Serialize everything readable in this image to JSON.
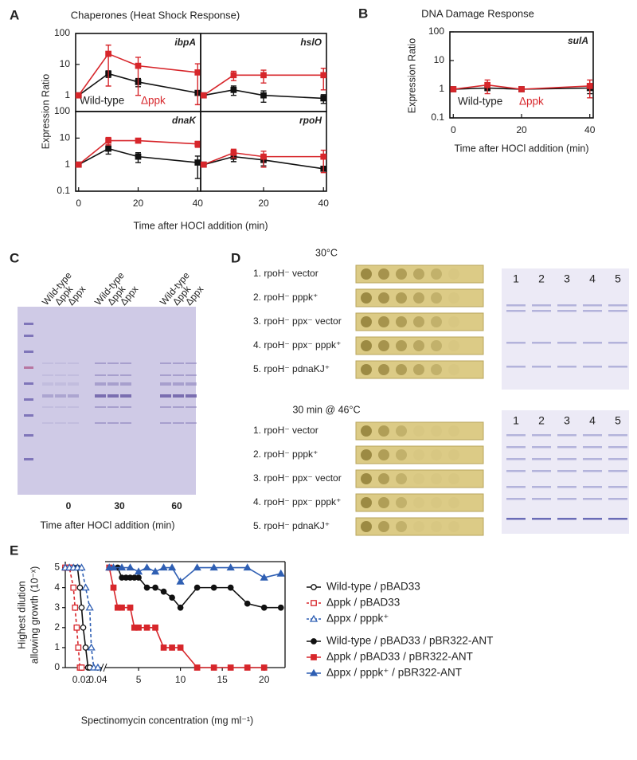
{
  "panel_labels": [
    "A",
    "B",
    "C",
    "D",
    "E"
  ],
  "panel_a": {
    "title": "Chaperones (Heat Shock Response)",
    "y_label": "Expression Ratio",
    "x_label": "Time after HOCl addition (min)"
  },
  "chart_data": [
    {
      "type": "line",
      "label": "ibpA",
      "log_scale": true,
      "x": [
        0,
        10,
        20,
        40
      ],
      "xlim": [
        -1,
        41
      ],
      "ylim": [
        0.3,
        100
      ],
      "yticks": [
        1,
        10,
        100
      ],
      "series": [
        {
          "name": "Wild-type",
          "color": "#111111",
          "marker": "square",
          "filled": true,
          "values": [
            1,
            5,
            2.7,
            1.2
          ],
          "errors": [
            0,
            1.2,
            0.8,
            0.1
          ]
        },
        {
          "name": "Δppk",
          "color": "#d7262b",
          "marker": "square",
          "filled": true,
          "values": [
            1,
            22,
            9,
            5.5
          ],
          "errors": [
            0,
            20,
            8,
            5
          ]
        }
      ]
    },
    {
      "type": "line",
      "label": "hslO",
      "log_scale": true,
      "x": [
        0,
        10,
        20,
        40
      ],
      "xlim": [
        -1,
        41
      ],
      "ylim": [
        0.3,
        100
      ],
      "series": [
        {
          "color": "#111111",
          "marker": "square",
          "filled": true,
          "values": [
            1,
            1.5,
            1,
            0.8
          ],
          "errors": [
            0,
            0.5,
            0.4,
            0.25
          ]
        },
        {
          "color": "#d7262b",
          "marker": "square",
          "filled": true,
          "values": [
            1,
            4.5,
            4.5,
            4.5
          ],
          "errors": [
            0,
            1.5,
            2,
            3
          ]
        }
      ]
    },
    {
      "type": "line",
      "label": "dnaK",
      "log_scale": true,
      "x": [
        0,
        10,
        20,
        40
      ],
      "xlim": [
        -1,
        41
      ],
      "ylim": [
        0.1,
        100
      ],
      "yticks": [
        0.1,
        1,
        10,
        100
      ],
      "xticks": [
        0,
        20,
        40
      ],
      "series": [
        {
          "color": "#111111",
          "marker": "square",
          "filled": true,
          "values": [
            1,
            4,
            2,
            1.2
          ],
          "errors": [
            0,
            1.5,
            0.8,
            0.9
          ]
        },
        {
          "color": "#d7262b",
          "marker": "square",
          "filled": true,
          "values": [
            1,
            8,
            8,
            6
          ],
          "errors": [
            0,
            2.5,
            0.5,
            1.5
          ]
        }
      ]
    },
    {
      "type": "line",
      "label": "rpoH",
      "log_scale": true,
      "x": [
        0,
        10,
        20,
        40
      ],
      "xlim": [
        -1,
        41
      ],
      "ylim": [
        0.1,
        100
      ],
      "xticks": [
        20,
        40
      ],
      "series": [
        {
          "color": "#111111",
          "marker": "square",
          "filled": true,
          "values": [
            1,
            2,
            1.5,
            0.7
          ],
          "errors": [
            0,
            0.7,
            0.6,
            0.05
          ]
        },
        {
          "color": "#d7262b",
          "marker": "square",
          "filled": true,
          "values": [
            1,
            2.8,
            2,
            2
          ],
          "errors": [
            0,
            1,
            1.2,
            1.5
          ]
        }
      ]
    },
    {
      "type": "line",
      "title": "DNA Damage Response",
      "label": "sulA",
      "y_label": "Expression Ratio",
      "x_label": "Time after HOCl addition (min)",
      "log_scale": true,
      "x": [
        0,
        10,
        20,
        40
      ],
      "xlim": [
        -1,
        41
      ],
      "ylim": [
        0.1,
        100
      ],
      "yticks": [
        0.1,
        1,
        10,
        100
      ],
      "xticks": [
        0,
        20,
        40
      ],
      "series": [
        {
          "name": "Wild-type",
          "color": "#111111",
          "marker": "square",
          "filled": true,
          "values": [
            1,
            1.1,
            1,
            1.1
          ],
          "errors": [
            0,
            0.2,
            0.05,
            0.4
          ]
        },
        {
          "name": "Δppk",
          "color": "#d7262b",
          "marker": "square",
          "filled": true,
          "values": [
            1,
            1.4,
            1,
            1.3
          ],
          "errors": [
            0,
            0.7,
            0.1,
            0.8
          ]
        }
      ]
    },
    {
      "type": "line",
      "xlim": [
        0,
        0.045
      ],
      "ylim": [
        0,
        5.3
      ],
      "yticks": [
        0,
        1,
        2,
        3,
        4,
        5
      ],
      "xticks": [
        0.02,
        0.04
      ],
      "series": [
        {
          "name": "Wild-type / pBAD33",
          "color": "#111111",
          "marker": "circle",
          "filled": false,
          "line_style": "solid",
          "x": [
            0,
            0.005,
            0.01,
            0.015,
            0.018,
            0.02,
            0.022,
            0.025,
            0.028,
            0.03
          ],
          "values": [
            5,
            5,
            5,
            5,
            4,
            3,
            2,
            1,
            0,
            0
          ]
        },
        {
          "name": "Δppk / pBAD33",
          "color": "#d7262b",
          "marker": "square",
          "filled": false,
          "line_style": "dashed",
          "x": [
            0,
            0.005,
            0.01,
            0.012,
            0.014,
            0.016,
            0.018,
            0.02
          ],
          "values": [
            5,
            5,
            4,
            3,
            2,
            1,
            0,
            0
          ]
        },
        {
          "name": "Δppx / pppk⁺",
          "color": "#2f5fb3",
          "marker": "triangle",
          "filled": false,
          "line_style": "dashed",
          "x": [
            0,
            0.005,
            0.01,
            0.015,
            0.02,
            0.025,
            0.03,
            0.032,
            0.035,
            0.04
          ],
          "values": [
            5,
            5,
            5,
            5,
            5,
            4,
            3,
            1,
            0,
            0
          ]
        }
      ]
    },
    {
      "type": "line",
      "xlim": [
        1,
        22.5
      ],
      "ylim": [
        0,
        5.3
      ],
      "xticks": [
        5,
        10,
        15,
        20
      ],
      "series": [
        {
          "name": "Wild-type / pBAD33 / pBR322-ANT",
          "color": "#111111",
          "marker": "circle",
          "filled": true,
          "line_style": "solid",
          "x": [
            1.5,
            2.5,
            3,
            3.5,
            4,
            4.5,
            5,
            6,
            7,
            8,
            9,
            10,
            12,
            14,
            16,
            18,
            20,
            22
          ],
          "values": [
            5,
            5,
            4.5,
            4.5,
            4.5,
            4.5,
            4.5,
            4,
            4,
            3.8,
            3.5,
            3,
            4,
            4,
            4,
            3.2,
            3,
            3
          ]
        },
        {
          "name": "Δppk / pBAD33 / pBR322-ANT",
          "color": "#d7262b",
          "marker": "square",
          "filled": true,
          "line_style": "solid",
          "x": [
            1.5,
            2,
            2.5,
            3,
            4,
            4.5,
            5,
            6,
            7,
            8,
            9,
            10,
            12,
            14,
            16,
            18,
            20
          ],
          "values": [
            5,
            4,
            3,
            3,
            3,
            2,
            2,
            2,
            2,
            1,
            1,
            1,
            0,
            0,
            0,
            0,
            0
          ]
        },
        {
          "name": "Δppx / pppk⁺ / pBR322-ANT",
          "color": "#2f5fb3",
          "marker": "triangle",
          "filled": true,
          "line_style": "solid",
          "x": [
            1.5,
            2,
            3,
            4,
            5,
            6,
            7,
            8,
            9,
            10,
            12,
            14,
            16,
            18,
            20,
            22
          ],
          "values": [
            5,
            5,
            5,
            5,
            4.8,
            5,
            4.8,
            5,
            5,
            4.3,
            5,
            5,
            5,
            5,
            4.5,
            4.7
          ]
        }
      ]
    }
  ],
  "panel_c": {
    "lanes": [
      "Wild-type",
      "Δppk",
      "Δppx",
      "Wild-type",
      "Δppk",
      "Δppx",
      "Wild-type",
      "Δppk",
      "Δppx"
    ],
    "times": [
      "0",
      "30",
      "60"
    ],
    "x_label": "Time after HOCl addition (min)"
  },
  "panel_d": {
    "conditions": [
      {
        "title": "30°C",
        "strains": [
          "1. rpoH⁻ vector",
          "2. rpoH⁻ pppk⁺",
          "3. rpoH⁻ ppx⁻ vector",
          "4. rpoH⁻ ppx⁻ pppk⁺",
          "5. rpoH⁻ pdnaKJ⁺"
        ],
        "lanes": [
          "1",
          "2",
          "3",
          "4",
          "5"
        ]
      },
      {
        "title": "30 min @ 46°C",
        "strains": [
          "1. rpoH⁻ vector",
          "2. rpoH⁻ pppk⁺",
          "3. rpoH⁻ ppx⁻ vector",
          "4. rpoH⁻ ppx⁻ pppk⁺",
          "5. rpoH⁻ pdnaKJ⁺"
        ],
        "lanes": [
          "1",
          "2",
          "3",
          "4",
          "5"
        ]
      }
    ]
  },
  "panel_e": {
    "y_label": [
      "Highest dilution",
      "allowing growth (10⁻ˣ)"
    ],
    "x_label": "Spectinomycin concentration (mg ml⁻¹)"
  }
}
